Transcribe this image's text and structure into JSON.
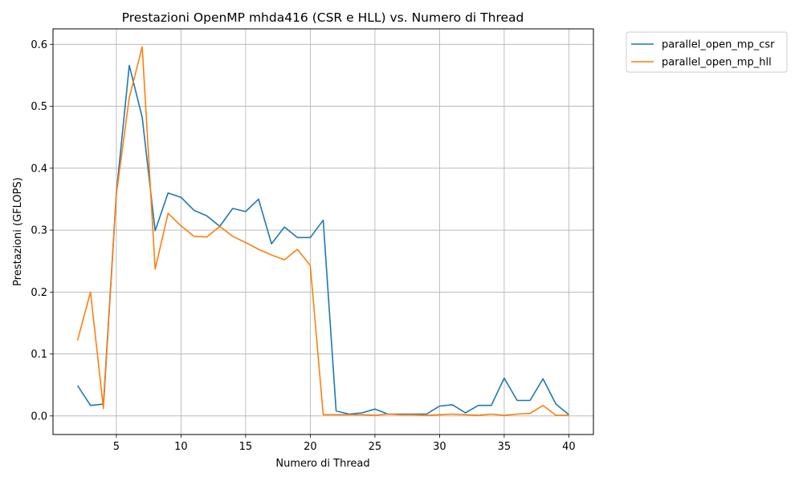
{
  "chart_data": {
    "type": "line",
    "title": "Prestazioni OpenMP mhda416 (CSR e HLL) vs. Numero di Thread",
    "xlabel": "Numero di Thread",
    "ylabel": "Prestazioni (GFLOPS)",
    "xlim": [
      0.1,
      41.9
    ],
    "ylim": [
      -0.03,
      0.625
    ],
    "xticks": [
      5,
      10,
      15,
      20,
      25,
      30,
      35,
      40
    ],
    "yticks": [
      0.0,
      0.1,
      0.2,
      0.3,
      0.4,
      0.5,
      0.6
    ],
    "ytick_labels": [
      "0.0",
      "0.1",
      "0.2",
      "0.3",
      "0.4",
      "0.5",
      "0.6"
    ],
    "grid": true,
    "legend_placement": "outside-top-right",
    "x": [
      2,
      3,
      4,
      5,
      6,
      7,
      8,
      9,
      10,
      11,
      12,
      13,
      14,
      15,
      16,
      17,
      18,
      19,
      20,
      21,
      22,
      23,
      24,
      25,
      26,
      27,
      28,
      29,
      30,
      31,
      32,
      33,
      34,
      35,
      36,
      37,
      38,
      39,
      40
    ],
    "series": [
      {
        "name": "parallel_open_mp_csr",
        "color": "#1f77b4",
        "values": [
          0.049,
          0.017,
          0.019,
          0.36,
          0.566,
          0.482,
          0.299,
          0.36,
          0.353,
          0.332,
          0.323,
          0.306,
          0.335,
          0.33,
          0.35,
          0.278,
          0.305,
          0.288,
          0.288,
          0.316,
          0.008,
          0.003,
          0.005,
          0.011,
          0.003,
          0.003,
          0.003,
          0.003,
          0.016,
          0.018,
          0.005,
          0.017,
          0.017,
          0.061,
          0.025,
          0.025,
          0.06,
          0.019,
          0.002
        ]
      },
      {
        "name": "parallel_open_mp_hll",
        "color": "#ff7f0e",
        "values": [
          0.122,
          0.2,
          0.012,
          0.358,
          0.514,
          0.596,
          0.237,
          0.327,
          0.307,
          0.29,
          0.289,
          0.306,
          0.29,
          0.28,
          0.269,
          0.26,
          0.252,
          0.269,
          0.243,
          0.002,
          0.002,
          0.002,
          0.002,
          0.001,
          0.003,
          0.002,
          0.002,
          0.001,
          0.002,
          0.003,
          0.002,
          0.001,
          0.003,
          0.001,
          0.003,
          0.004,
          0.017,
          0.001,
          0.001
        ]
      }
    ]
  }
}
